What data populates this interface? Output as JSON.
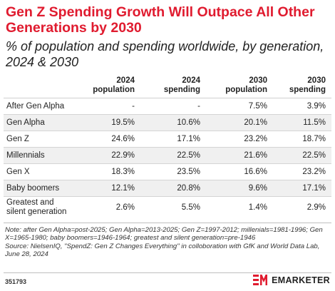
{
  "title": "Gen Z Spending Growth Will Outpace All Other Generations by 2030",
  "subtitle": "% of population and spending worldwide, by generation, 2024 & 2030",
  "chart_data": {
    "type": "table",
    "columns": [
      "",
      "2024 population",
      "2024 spending",
      "2030 population",
      "2030 spending"
    ],
    "rows": [
      {
        "generation": "After Gen Alpha",
        "values": [
          "-",
          "-",
          "7.5%",
          "3.9%"
        ]
      },
      {
        "generation": "Gen Alpha",
        "values": [
          "19.5%",
          "10.6%",
          "20.1%",
          "11.5%"
        ]
      },
      {
        "generation": "Gen Z",
        "values": [
          "24.6%",
          "17.1%",
          "23.2%",
          "18.7%"
        ]
      },
      {
        "generation": "Millennials",
        "values": [
          "22.9%",
          "22.5%",
          "21.6%",
          "22.5%"
        ]
      },
      {
        "generation": "Gen X",
        "values": [
          "18.3%",
          "23.5%",
          "16.6%",
          "23.2%"
        ]
      },
      {
        "generation": "Baby boomers",
        "values": [
          "12.1%",
          "20.8%",
          "9.6%",
          "17.1%"
        ]
      },
      {
        "generation": "Greatest and silent generation",
        "values": [
          "2.6%",
          "5.5%",
          "1.4%",
          "2.9%"
        ]
      }
    ]
  },
  "note": "Note: after Gen Alpha=post-2025; Gen Alpha=2013-2025; Gen Z=1997-2012; millenials=1981-1996; Gen X=1965-1980; baby boomers=1946-1964; greatest and silent generation=pre-1946",
  "source": "Source: NielsenIQ, \"SpendZ: Gen Z Changes Everything\" in colloboration with GfK and World Data Lab, June 28, 2024",
  "chart_id": "351793",
  "brand": "EMARKETER",
  "colors": {
    "title": "#e01b2f",
    "stripe": "#f0f0f0",
    "logo": "#e01b2f"
  }
}
